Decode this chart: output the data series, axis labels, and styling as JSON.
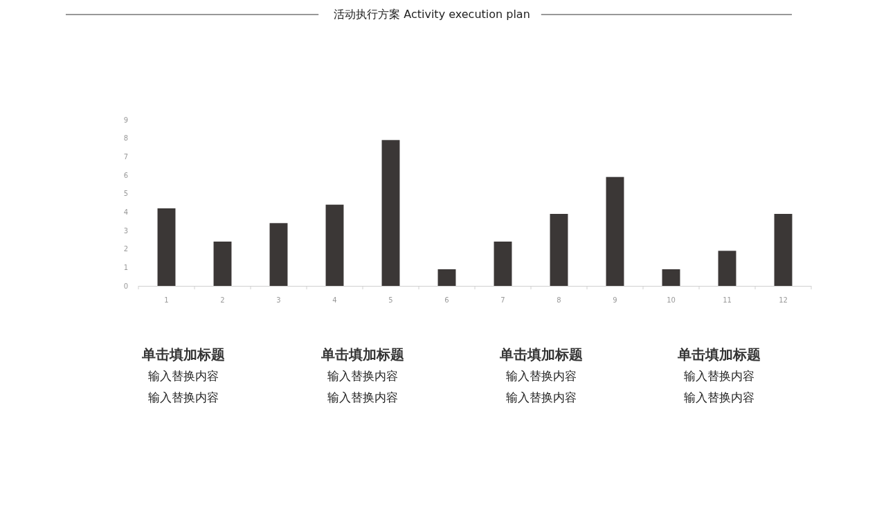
{
  "chart_data": {
    "type": "bar",
    "title": "活动执行方案 Activity execution plan",
    "categories": [
      "1",
      "2",
      "3",
      "4",
      "5",
      "6",
      "7",
      "8",
      "9",
      "10",
      "11",
      "12"
    ],
    "values": [
      4.2,
      2.4,
      3.4,
      4.4,
      7.9,
      0.9,
      2.4,
      3.9,
      5.9,
      0.9,
      1.9,
      3.9
    ],
    "color": "#3b3736",
    "ylim": [
      0,
      9
    ],
    "yticks": [
      0,
      1,
      2,
      3,
      4,
      5,
      6,
      7,
      8,
      9
    ],
    "annotations": [
      "单击填加标题",
      "输入替换内容",
      "输入替换内容",
      "单击填加标题",
      "输入替换内容",
      "输入替换内容",
      "单击填加标题",
      "输入替换内容",
      "输入替换内容",
      "单击填加标题",
      "输入替换内容",
      "输入替换内容"
    ]
  }
}
